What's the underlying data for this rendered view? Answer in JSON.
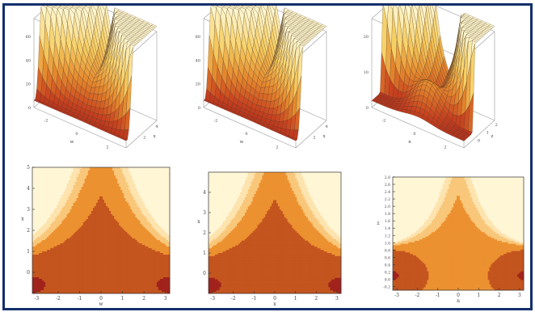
{
  "chart_data": [
    {
      "type": "surface",
      "panel": "top-left",
      "xlabel": "w",
      "ylabel": "x",
      "xticks": [
        "-2",
        "0",
        "2"
      ],
      "yticks": [
        "2",
        "4"
      ],
      "zticks": [
        "0",
        "20",
        "40",
        "60"
      ],
      "xlim": [
        -3,
        3
      ],
      "ylim": [
        0,
        5
      ],
      "zlim": [
        0,
        70
      ],
      "colormap": [
        "#9e1f1a",
        "#c8421f",
        "#e58a2e",
        "#f6cf63",
        "#fff6cc"
      ]
    },
    {
      "type": "surface",
      "panel": "top-middle",
      "xlabel": "w",
      "ylabel": "x",
      "xticks": [
        "-2",
        "0",
        "2"
      ],
      "yticks": [
        "2",
        "4"
      ],
      "zticks": [
        "0",
        "20",
        "40",
        "60"
      ],
      "xlim": [
        -3,
        3
      ],
      "ylim": [
        0,
        5
      ],
      "zlim": [
        0,
        70
      ],
      "colormap": [
        "#9e1f1a",
        "#c8421f",
        "#e58a2e",
        "#f6cf63",
        "#fff6cc"
      ]
    },
    {
      "type": "surface",
      "panel": "top-right",
      "xlabel": "n",
      "ylabel": "z",
      "xticks": [
        "-2",
        "0",
        "2"
      ],
      "yticks": [
        "0",
        "1",
        "2"
      ],
      "zticks": [
        "0",
        "10",
        "20"
      ],
      "xlim": [
        -3,
        3
      ],
      "ylim": [
        -0.2,
        2.8
      ],
      "zlim": [
        0,
        25
      ],
      "colormap": [
        "#9e1f1a",
        "#c8421f",
        "#e58a2e",
        "#f6cf63",
        "#fff6cc"
      ]
    },
    {
      "type": "contour",
      "panel": "bottom-left",
      "xlabel": "w",
      "ylabel": "x",
      "xlim": [
        -3.2,
        3.2
      ],
      "ylim": [
        -1,
        5
      ],
      "xticks": [
        "-3",
        "-2",
        "-1",
        "0",
        "1",
        "2",
        "3"
      ],
      "yticks": [
        "0",
        "1",
        "2",
        "3",
        "4",
        "5"
      ],
      "levels": [
        2,
        14,
        28,
        40,
        55
      ],
      "colors": [
        "#a1231c",
        "#c4551f",
        "#ec9130",
        "#f9c77a",
        "#fde3ae",
        "#fff6d6"
      ]
    },
    {
      "type": "contour",
      "panel": "bottom-middle",
      "xlabel": "x",
      "ylabel": "x",
      "xlim": [
        -3.2,
        3.2
      ],
      "ylim": [
        -1,
        5
      ],
      "xticks": [
        "-3",
        "-2",
        "-1",
        "0",
        "1",
        "2",
        "3"
      ],
      "yticks": [
        "0",
        "1",
        "2",
        "3",
        "4"
      ],
      "levels": [
        2,
        14,
        28,
        40,
        55
      ],
      "colors": [
        "#a1231c",
        "#c4551f",
        "#ec9130",
        "#f9c77a",
        "#fde3ae",
        "#fff6d6"
      ]
    },
    {
      "type": "contour",
      "panel": "bottom-right",
      "xlabel": "n",
      "ylabel": "z",
      "xlim": [
        -3.2,
        3.2
      ],
      "ylim": [
        -0.3,
        2.8
      ],
      "xticks": [
        "-3",
        "-2",
        "-1",
        "0",
        "1",
        "2",
        "3"
      ],
      "yticks": [
        "-0.2",
        "0.0",
        "0.2",
        "0.4",
        "0.6",
        "0.8",
        "1.0",
        "1.2",
        "1.4",
        "1.6",
        "1.8",
        "2.0",
        "2.2",
        "2.4",
        "2.6",
        "2.8"
      ],
      "levels": [
        1,
        5,
        10,
        15,
        20
      ],
      "colors": [
        "#a1231c",
        "#c4551f",
        "#ec9130",
        "#f9c77a",
        "#fde3ae",
        "#fff6d6"
      ]
    }
  ]
}
